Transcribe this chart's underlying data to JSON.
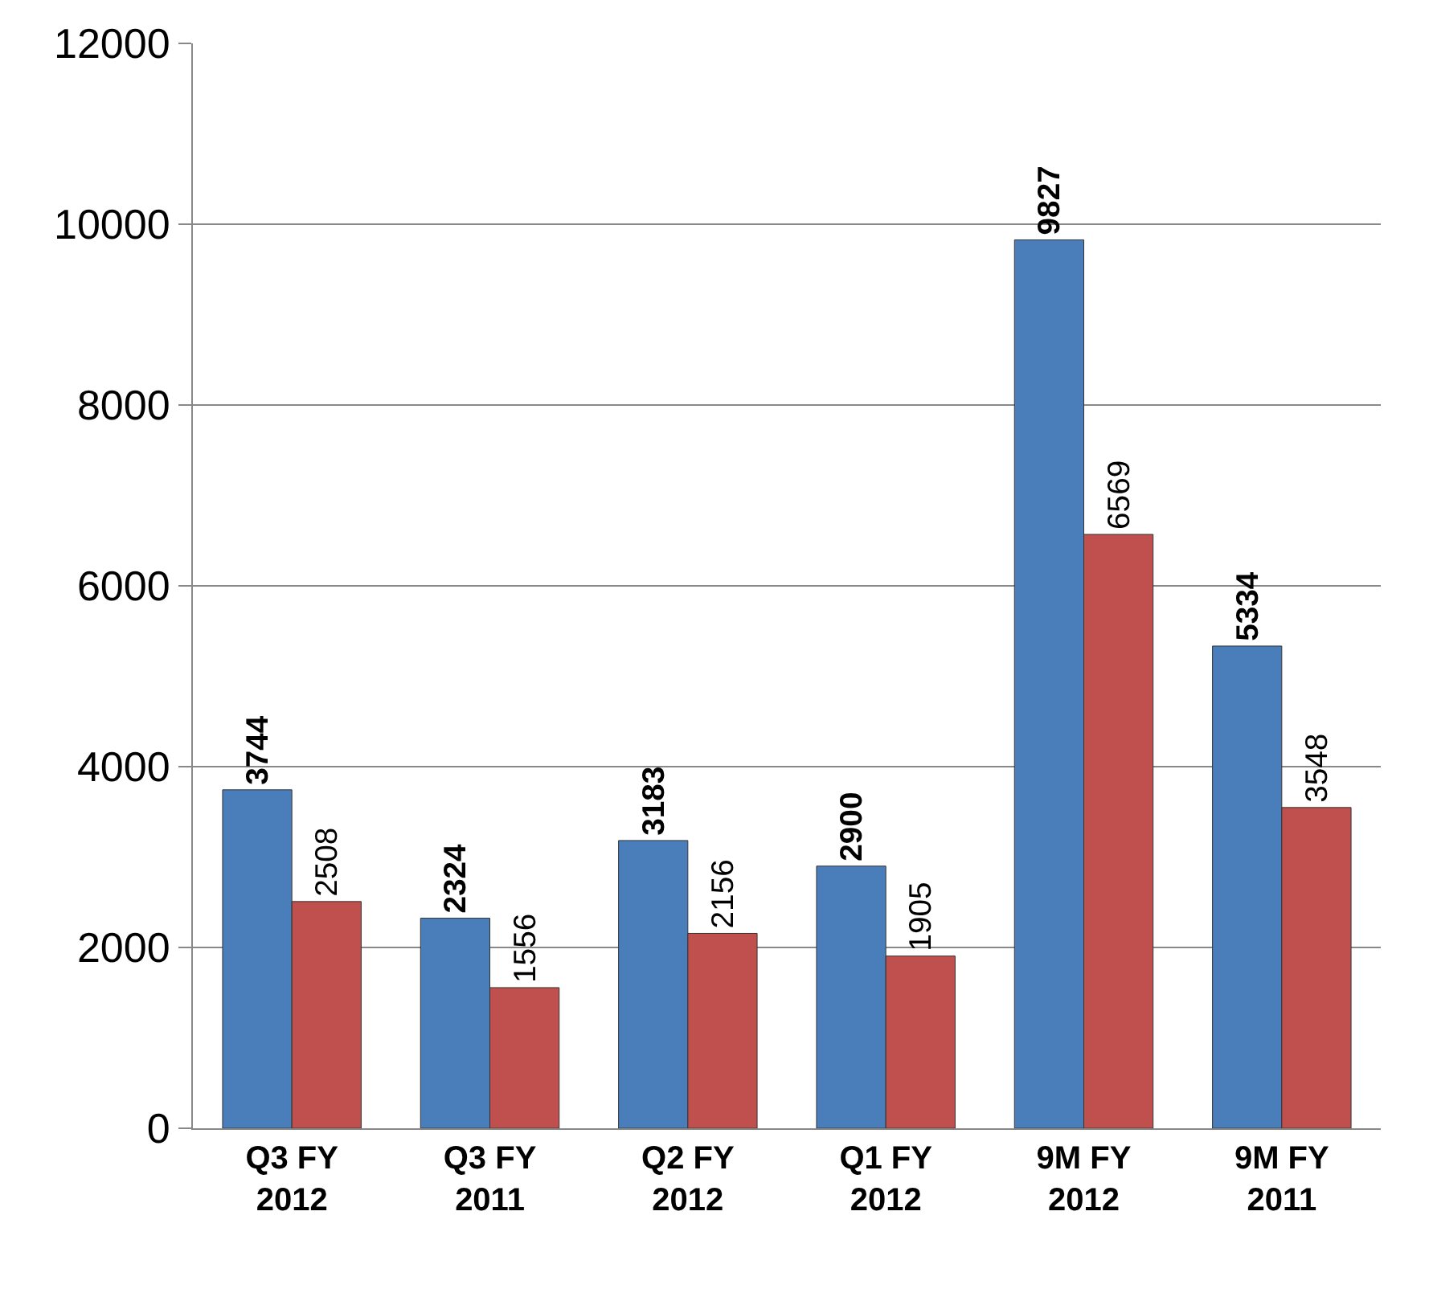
{
  "chart_data": {
    "type": "bar",
    "categories": [
      "Q3 FY 2012",
      "Q3 FY 2011",
      "Q2 FY 2012",
      "Q1 FY 2012",
      "9M FY 2012",
      "9M FY 2011"
    ],
    "series": [
      {
        "color": "#4a7ebb",
        "values": [
          3744,
          2324,
          3183,
          2900,
          9827,
          5334
        ]
      },
      {
        "color": "#c0504d",
        "values": [
          2508,
          1556,
          2156,
          1905,
          6569,
          3548
        ]
      }
    ],
    "ylim": [
      0,
      12000
    ],
    "yticks": [
      0,
      2000,
      4000,
      6000,
      8000,
      10000,
      12000
    ],
    "grid": "y",
    "data_labels": true
  }
}
